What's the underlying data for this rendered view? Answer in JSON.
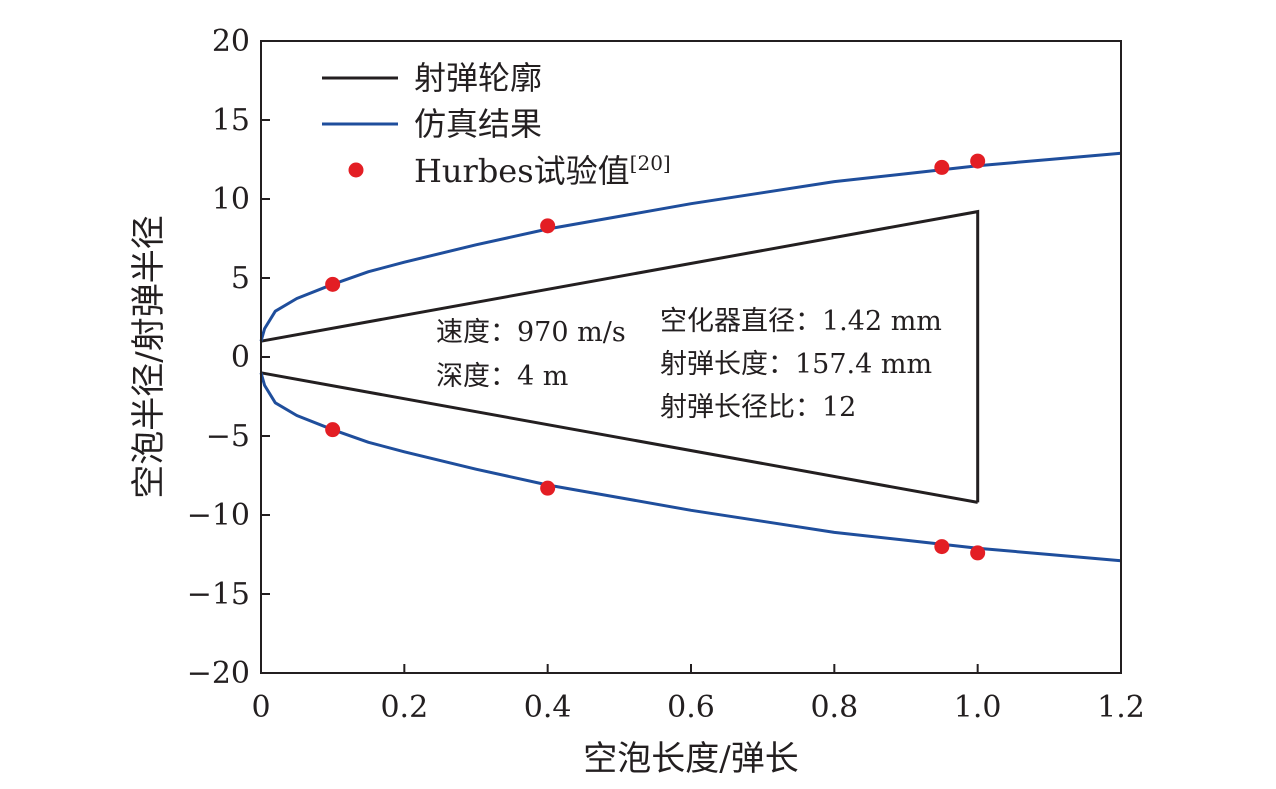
{
  "chart_data": {
    "type": "line",
    "title": "",
    "xlabel": "空泡长度/弹长",
    "ylabel": "空泡半径/射弹半径",
    "xlim": [
      0,
      1.2
    ],
    "ylim": [
      -20,
      20
    ],
    "x_ticks": [
      0,
      0.2,
      0.4,
      0.6,
      0.8,
      1.0,
      1.2
    ],
    "x_tick_labels": [
      "0",
      "0.2",
      "0.4",
      "0.6",
      "0.8",
      "1.0",
      "1.2"
    ],
    "y_ticks": [
      -20,
      -15,
      -10,
      -5,
      0,
      5,
      10,
      15,
      20
    ],
    "y_tick_labels": [
      "−20",
      "−15",
      "−10",
      "−5",
      "0",
      "5",
      "10",
      "15",
      "20"
    ],
    "grid": false,
    "legend_position": "top-left",
    "colors": {
      "profile": "#231f20",
      "simulation": "#1f4e9c",
      "experiment": "#e31e24"
    },
    "series": [
      {
        "name": "射弹轮廓",
        "kind": "line",
        "segments": [
          {
            "x": [
              0,
              1.0,
              1.0
            ],
            "y": [
              1.0,
              9.2,
              -9.2
            ]
          },
          {
            "x": [
              0,
              1.0
            ],
            "y": [
              -1.0,
              -9.2
            ]
          }
        ]
      },
      {
        "name": "仿真结果",
        "kind": "line",
        "x": [
          0,
          0.005,
          0.02,
          0.05,
          0.1,
          0.15,
          0.2,
          0.3,
          0.4,
          0.5,
          0.6,
          0.7,
          0.8,
          0.9,
          1.0,
          1.1,
          1.2
        ],
        "y_upper": [
          1.0,
          1.8,
          2.9,
          3.7,
          4.6,
          5.4,
          6.0,
          7.1,
          8.1,
          8.9,
          9.7,
          10.4,
          11.1,
          11.6,
          12.1,
          12.5,
          12.9
        ],
        "y_lower": [
          -1.0,
          -1.8,
          -2.9,
          -3.7,
          -4.6,
          -5.4,
          -6.0,
          -7.1,
          -8.1,
          -8.9,
          -9.7,
          -10.4,
          -11.1,
          -11.6,
          -12.1,
          -12.5,
          -12.9
        ]
      },
      {
        "name": "Hurbes试验值",
        "name_superscript": "[20]",
        "kind": "scatter",
        "x": [
          0.1,
          0.4,
          0.95,
          1.0,
          0.1,
          0.4,
          0.95,
          1.0
        ],
        "y": [
          4.6,
          8.3,
          12.0,
          12.4,
          -4.6,
          -8.3,
          -12.0,
          -12.4
        ]
      }
    ],
    "annotations": {
      "left": [
        "速度：970 m/s",
        "深度：4 m"
      ],
      "right": [
        "空化器直径：1.42 mm",
        "射弹长度：157.4 mm",
        "射弹长径比：12"
      ]
    }
  }
}
